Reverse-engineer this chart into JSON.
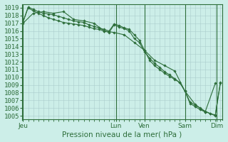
{
  "background_color": "#cceee8",
  "grid_color": "#aacccc",
  "line_color": "#2d6e3a",
  "marker_color": "#2d6e3a",
  "xlabel": "Pression niveau de la mer( hPa )",
  "xlabel_fontsize": 7.5,
  "tick_fontsize": 6.5,
  "ylim": [
    1004.5,
    1019.5
  ],
  "yticks": [
    1005,
    1006,
    1007,
    1008,
    1009,
    1010,
    1011,
    1012,
    1013,
    1014,
    1015,
    1016,
    1017,
    1018,
    1019
  ],
  "xlim": [
    -0.5,
    118
  ],
  "day_positions": [
    0,
    55,
    72,
    96,
    115
  ],
  "day_labels": [
    "Jeu",
    "Lun",
    "Ven",
    "Sam",
    "Dim"
  ],
  "line1_x": [
    0,
    3,
    6,
    9,
    12,
    15,
    18,
    21,
    24,
    27,
    30,
    33,
    36,
    39,
    42,
    45,
    48,
    51,
    54,
    57,
    60,
    63,
    66,
    69,
    72,
    75,
    78,
    81,
    84,
    87,
    90,
    93,
    96,
    99,
    102,
    105,
    108,
    111,
    114,
    117
  ],
  "line1_y": [
    1017.2,
    1019.0,
    1018.6,
    1018.3,
    1018.0,
    1017.7,
    1017.5,
    1017.3,
    1017.1,
    1017.0,
    1016.9,
    1016.8,
    1016.7,
    1016.5,
    1016.3,
    1016.2,
    1016.0,
    1015.8,
    1016.8,
    1016.5,
    1016.3,
    1016.0,
    1015.0,
    1014.5,
    1013.3,
    1012.5,
    1011.8,
    1011.3,
    1010.7,
    1010.3,
    1009.8,
    1009.3,
    1008.2,
    1006.6,
    1006.2,
    1005.8,
    1005.5,
    1005.3,
    1005.1,
    1009.2
  ],
  "line2_x": [
    0,
    3,
    6,
    9,
    12,
    15,
    18,
    21,
    24,
    27,
    30,
    33,
    36,
    39,
    42,
    45,
    48,
    51,
    54,
    57,
    60,
    63,
    66,
    69,
    72,
    75,
    78,
    81,
    84,
    87,
    90,
    93,
    96,
    99,
    102,
    105,
    108,
    111,
    114,
    117
  ],
  "line2_y": [
    1017.2,
    1019.1,
    1018.8,
    1018.5,
    1018.3,
    1018.2,
    1018.1,
    1017.9,
    1017.7,
    1017.5,
    1017.3,
    1017.2,
    1017.1,
    1016.8,
    1016.6,
    1016.4,
    1016.2,
    1016.0,
    1016.9,
    1016.7,
    1016.4,
    1016.2,
    1015.5,
    1014.8,
    1013.5,
    1012.2,
    1011.5,
    1011.0,
    1010.5,
    1010.1,
    1009.7,
    1009.3,
    1008.2,
    1006.8,
    1006.4,
    1006.0,
    1005.6,
    1005.3,
    1005.0,
    1009.3
  ],
  "line3_x": [
    0,
    6,
    12,
    18,
    24,
    30,
    36,
    42,
    48,
    54,
    60,
    66,
    72,
    78,
    84,
    90,
    96,
    102,
    108,
    114
  ],
  "line3_y": [
    1017.0,
    1018.3,
    1018.5,
    1018.3,
    1018.5,
    1017.5,
    1017.3,
    1017.0,
    1016.0,
    1015.8,
    1015.5,
    1014.5,
    1013.5,
    1012.2,
    1011.5,
    1010.8,
    1008.2,
    1006.5,
    1005.5,
    1009.2
  ],
  "vline_positions": [
    0,
    55,
    72,
    96,
    115
  ]
}
